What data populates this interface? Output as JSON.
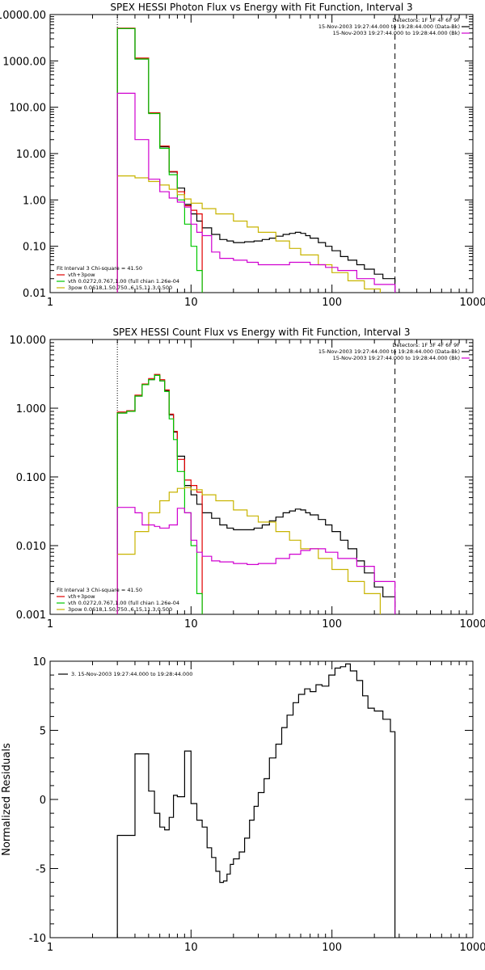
{
  "chart_data": [
    {
      "type": "line",
      "title": "SPEX HESSI Photon Flux vs Energy with Fit Function, Interval 3",
      "xscale": "log",
      "yscale": "log",
      "xlim": [
        1,
        1000
      ],
      "ylim": [
        0.01,
        10000
      ],
      "x_ticks": [
        "1",
        "10",
        "100",
        "1000"
      ],
      "y_ticks": [
        {
          "v": 0.01,
          "label": "0.01"
        },
        {
          "v": 0.1,
          "label": "0.10"
        },
        {
          "v": 1,
          "label": "1.00"
        },
        {
          "v": 10,
          "label": "10.00"
        },
        {
          "v": 100,
          "label": "100.00"
        },
        {
          "v": 1000,
          "label": "1000.00"
        },
        {
          "v": 10000,
          "label": "10000.00"
        }
      ],
      "vlines": [
        {
          "x": 3,
          "style": "dotted"
        },
        {
          "x": 280,
          "style": "dashed"
        }
      ],
      "legend_top": [
        {
          "text": "Detectors: 1F 3F 4F 6F 9F",
          "color": ""
        },
        {
          "text": "15-Nov-2003 19:27:44.000 to 19:28:44.000 (Data-Bk)",
          "color": "#000000"
        },
        {
          "text": "15-Nov-2003 19:27:44.000 to 19:28:44.000 (Bk)",
          "color": "#d000d0"
        }
      ],
      "legend_bottom": [
        {
          "text": "Fit Interval 3   Chi-square = 41.50",
          "color": ""
        },
        {
          "text": "vth+3pow",
          "color": "#e00000"
        },
        {
          "text": "vth 0.0272,0.767,1.00  (full chian 1.26e-04",
          "color": "#00c800"
        },
        {
          "text": "3pow 0.0618,1.50,750.,6.15,11.3,0.500",
          "color": "#c8b400"
        }
      ],
      "series": [
        {
          "color": "#000000",
          "x": [
            3,
            3.5,
            4,
            4.5,
            5,
            5.5,
            6,
            6.5,
            7,
            7.5,
            8,
            9,
            10,
            11,
            12,
            14,
            16,
            18,
            20,
            24,
            28,
            32,
            36,
            40,
            45,
            50,
            55,
            60,
            65,
            70,
            80,
            90,
            100,
            115,
            130,
            150,
            170,
            200,
            230,
            280
          ],
          "y": [
            5000,
            5000,
            1100,
            1100,
            75,
            75,
            14,
            14,
            4,
            4,
            1.8,
            0.8,
            0.5,
            0.35,
            0.25,
            0.18,
            0.14,
            0.13,
            0.12,
            0.125,
            0.13,
            0.14,
            0.15,
            0.165,
            0.18,
            0.19,
            0.2,
            0.19,
            0.17,
            0.15,
            0.12,
            0.1,
            0.08,
            0.06,
            0.05,
            0.04,
            0.032,
            0.025,
            0.02,
            0.02
          ]
        },
        {
          "color": "#e00000",
          "x": [
            3,
            3.5,
            4,
            4.5,
            5,
            5.5,
            6,
            6.5,
            7,
            7.5,
            8,
            9,
            10,
            11,
            12
          ],
          "y": [
            5100,
            5100,
            1150,
            1150,
            76,
            76,
            14.5,
            14.5,
            4.1,
            4.1,
            1.5,
            0.75,
            0.6,
            0.5,
            0.5
          ]
        },
        {
          "color": "#00c800",
          "x": [
            3,
            3.5,
            4,
            4.5,
            5,
            5.5,
            6,
            6.5,
            7,
            7.5,
            8,
            9,
            10,
            11,
            12
          ],
          "y": [
            5000,
            5000,
            1100,
            1100,
            73,
            73,
            13,
            13,
            3.5,
            3.5,
            1.0,
            0.3,
            0.1,
            0.03,
            0.005
          ]
        },
        {
          "color": "#c8b400",
          "x": [
            3,
            4,
            5,
            6,
            7,
            8,
            9,
            10,
            12,
            15,
            20,
            25,
            30,
            40,
            50,
            60,
            80,
            100,
            130,
            170,
            220
          ],
          "y": [
            3.3,
            3.0,
            2.5,
            2.1,
            1.7,
            1.3,
            1.05,
            0.85,
            0.65,
            0.5,
            0.35,
            0.26,
            0.2,
            0.13,
            0.09,
            0.065,
            0.04,
            0.027,
            0.018,
            0.012,
            0.008
          ]
        },
        {
          "color": "#d000d0",
          "x": [
            3,
            3.5,
            4,
            4.5,
            5,
            5.5,
            6,
            7,
            8,
            9,
            10,
            11,
            12,
            14,
            16,
            20,
            25,
            30,
            40,
            50,
            60,
            70,
            90,
            110,
            150,
            200,
            280
          ],
          "y": [
            200,
            200,
            20,
            20,
            2.8,
            2.8,
            1.5,
            1.1,
            0.9,
            0.7,
            0.3,
            0.2,
            0.17,
            0.075,
            0.055,
            0.05,
            0.045,
            0.04,
            0.04,
            0.045,
            0.045,
            0.04,
            0.035,
            0.03,
            0.02,
            0.015,
            0.01
          ]
        }
      ]
    },
    {
      "type": "line",
      "title": "SPEX HESSI Count Flux vs Energy with Fit Function, Interval 3",
      "xscale": "log",
      "yscale": "log",
      "xlim": [
        1,
        1000
      ],
      "ylim": [
        0.001,
        10
      ],
      "x_ticks": [
        "1",
        "10",
        "100",
        "1000"
      ],
      "y_ticks": [
        {
          "v": 0.001,
          "label": "0.001"
        },
        {
          "v": 0.01,
          "label": "0.010"
        },
        {
          "v": 0.1,
          "label": "0.100"
        },
        {
          "v": 1,
          "label": "1.000"
        },
        {
          "v": 10,
          "label": "10.000"
        }
      ],
      "vlines": [
        {
          "x": 3,
          "style": "dotted"
        },
        {
          "x": 280,
          "style": "dashed"
        }
      ],
      "legend_top": [
        {
          "text": "Detectors: 1F 3F 4F 6F 9F",
          "color": ""
        },
        {
          "text": "15-Nov-2003 19:27:44.000 to 19:28:44.000 (Data-Bk)",
          "color": "#000000"
        },
        {
          "text": "15-Nov-2003 19:27:44.000 to 19:28:44.000 (Bk)",
          "color": "#d000d0"
        }
      ],
      "legend_bottom": [
        {
          "text": "Fit Interval 3   Chi-square = 41.50",
          "color": ""
        },
        {
          "text": "vth+3pow",
          "color": "#e00000"
        },
        {
          "text": "vth 0.0272,0.767,1.00  (full chian 1.26e-04",
          "color": "#00c800"
        },
        {
          "text": "3pow 0.0618,1.50,750.,6.15,11.3,0.500",
          "color": "#c8b400"
        }
      ],
      "series": [
        {
          "color": "#000000",
          "x": [
            3,
            3.5,
            4,
            4.5,
            5,
            5.5,
            6,
            6.5,
            7,
            7.5,
            8,
            9,
            10,
            11,
            12,
            14,
            16,
            18,
            20,
            24,
            28,
            32,
            36,
            40,
            45,
            50,
            55,
            60,
            65,
            70,
            80,
            90,
            100,
            115,
            130,
            150,
            170,
            200,
            230,
            280
          ],
          "y": [
            0.85,
            0.9,
            1.5,
            2.2,
            2.6,
            3.0,
            2.5,
            1.8,
            0.8,
            0.45,
            0.2,
            0.075,
            0.055,
            0.04,
            0.03,
            0.025,
            0.02,
            0.018,
            0.017,
            0.017,
            0.018,
            0.02,
            0.023,
            0.026,
            0.03,
            0.032,
            0.034,
            0.033,
            0.03,
            0.028,
            0.024,
            0.02,
            0.016,
            0.012,
            0.009,
            0.006,
            0.004,
            0.0025,
            0.0018,
            0.0013
          ]
        },
        {
          "color": "#e00000",
          "x": [
            3,
            3.5,
            4,
            4.5,
            5,
            5.5,
            6,
            6.5,
            7,
            7.5,
            8,
            9,
            10,
            11,
            12
          ],
          "y": [
            0.88,
            0.92,
            1.55,
            2.25,
            2.7,
            3.1,
            2.6,
            1.85,
            0.82,
            0.46,
            0.18,
            0.09,
            0.075,
            0.06,
            0.055
          ]
        },
        {
          "color": "#00c800",
          "x": [
            3,
            3.5,
            4,
            4.5,
            5,
            5.5,
            6,
            6.5,
            7,
            7.5,
            8,
            9,
            10,
            11,
            12
          ],
          "y": [
            0.85,
            0.9,
            1.5,
            2.2,
            2.6,
            3.0,
            2.5,
            1.75,
            0.7,
            0.35,
            0.12,
            0.03,
            0.01,
            0.002,
            0.0005
          ]
        },
        {
          "color": "#c8b400",
          "x": [
            3,
            4,
            5,
            6,
            7,
            8,
            9,
            10,
            12,
            15,
            20,
            25,
            30,
            40,
            50,
            60,
            80,
            100,
            130,
            170,
            220
          ],
          "y": [
            0.0075,
            0.016,
            0.03,
            0.045,
            0.06,
            0.068,
            0.07,
            0.065,
            0.055,
            0.045,
            0.033,
            0.027,
            0.022,
            0.016,
            0.012,
            0.009,
            0.0065,
            0.0045,
            0.003,
            0.002,
            0.001
          ]
        },
        {
          "color": "#d000d0",
          "x": [
            3,
            3.5,
            4,
            4.5,
            5,
            5.5,
            6,
            7,
            8,
            9,
            10,
            11,
            12,
            14,
            16,
            20,
            25,
            30,
            40,
            50,
            60,
            70,
            90,
            110,
            150,
            200,
            280
          ],
          "y": [
            0.036,
            0.036,
            0.03,
            0.02,
            0.02,
            0.019,
            0.018,
            0.02,
            0.035,
            0.03,
            0.012,
            0.008,
            0.007,
            0.006,
            0.0058,
            0.0055,
            0.0053,
            0.0055,
            0.0065,
            0.0075,
            0.0085,
            0.009,
            0.008,
            0.0065,
            0.005,
            0.003,
            0.002
          ]
        }
      ]
    },
    {
      "type": "line",
      "title": "",
      "ylabel": "Normalized Residuals",
      "xscale": "log",
      "yscale": "linear",
      "xlim": [
        1,
        1000
      ],
      "ylim": [
        -10,
        10
      ],
      "x_ticks": [
        "1",
        "10",
        "100",
        "1000"
      ],
      "y_ticks": [
        {
          "v": -10,
          "label": "-10"
        },
        {
          "v": -5,
          "label": "-5"
        },
        {
          "v": 0,
          "label": "0"
        },
        {
          "v": 5,
          "label": "5"
        },
        {
          "v": 10,
          "label": "10"
        }
      ],
      "legend_top_left": "3. 15-Nov-2003 19:27:44.000 to 19:28:44.000",
      "series": [
        {
          "color": "#000000",
          "x": [
            3,
            4,
            4.5,
            5,
            5.5,
            6,
            6.5,
            7,
            7.5,
            8,
            9,
            10,
            11,
            12,
            13,
            14,
            15,
            16,
            17,
            18,
            19,
            20,
            22,
            24,
            26,
            28,
            30,
            33,
            36,
            40,
            44,
            48,
            53,
            58,
            64,
            70,
            77,
            85,
            95,
            105,
            115,
            125,
            135,
            150,
            165,
            180,
            200,
            230,
            260,
            280
          ],
          "y": [
            -2.6,
            3.3,
            3.3,
            0.6,
            -1.0,
            -2.0,
            -2.2,
            -1.3,
            0.3,
            0.2,
            3.5,
            -0.3,
            -1.5,
            -2.0,
            -3.5,
            -4.2,
            -5.2,
            -6.0,
            -5.9,
            -5.4,
            -4.7,
            -4.3,
            -3.8,
            -2.8,
            -1.5,
            -0.5,
            0.5,
            1.5,
            3.0,
            4.0,
            5.2,
            6.1,
            7.0,
            7.6,
            8.0,
            7.8,
            8.3,
            8.2,
            9.0,
            9.5,
            9.6,
            9.8,
            9.3,
            8.6,
            7.5,
            6.6,
            6.4,
            5.8,
            4.9,
            4.3
          ]
        }
      ]
    }
  ]
}
